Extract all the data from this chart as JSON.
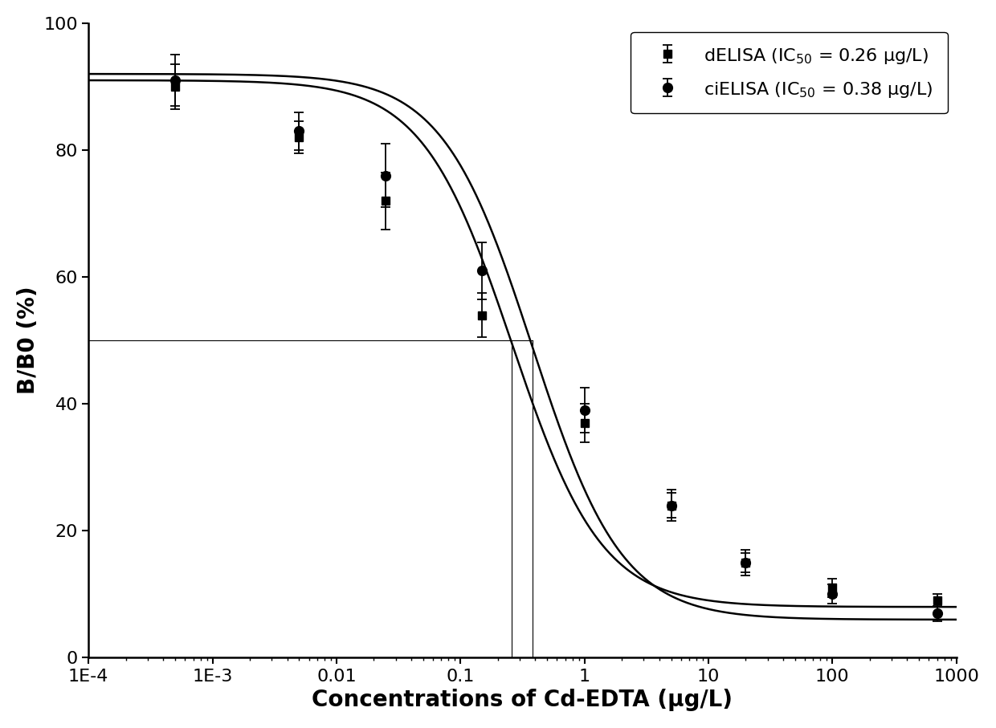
{
  "title": "",
  "xlabel": "Concentrations of Cd-EDTA (μg/L)",
  "ylabel": "B/B0 (%)",
  "ylim": [
    0,
    100
  ],
  "color": "#000000",
  "background": "#ffffff",
  "delisa_x": [
    0.0005,
    0.005,
    0.025,
    0.15,
    1.0,
    5.0,
    20.0,
    100.0,
    700.0
  ],
  "delisa_y": [
    90,
    82,
    72,
    54,
    37,
    24,
    15,
    11,
    9
  ],
  "delisa_yerr": [
    3.5,
    2.5,
    4.5,
    3.5,
    3.0,
    2.0,
    1.5,
    1.5,
    1.0
  ],
  "cielisa_x": [
    0.0005,
    0.005,
    0.025,
    0.15,
    1.0,
    5.0,
    20.0,
    100.0,
    700.0
  ],
  "cielisa_y": [
    91,
    83,
    76,
    61,
    39,
    24,
    15,
    10,
    7
  ],
  "cielisa_yerr": [
    4.0,
    3.0,
    5.0,
    4.5,
    3.5,
    2.5,
    2.0,
    1.5,
    1.2
  ],
  "legend_delisa": "dELISA (IC$_{50}$ = 0.26 μg/L)",
  "legend_cielisa": "ciELISA (IC$_{50}$ = 0.38 μg/L)",
  "ic50_delisa": 0.26,
  "ic50_cielisa": 0.38,
  "fontsize_axis_label": 20,
  "fontsize_tick": 16,
  "fontsize_legend": 16,
  "x_ticks": [
    0.0001,
    0.001,
    0.01,
    0.1,
    1.0,
    10.0,
    100.0,
    1000.0
  ],
  "x_labels": [
    "1E-4",
    "1E-3",
    "0.01",
    "0.1",
    "1",
    "10",
    "100",
    "1000"
  ],
  "y_ticks": [
    0,
    20,
    40,
    60,
    80,
    100
  ]
}
